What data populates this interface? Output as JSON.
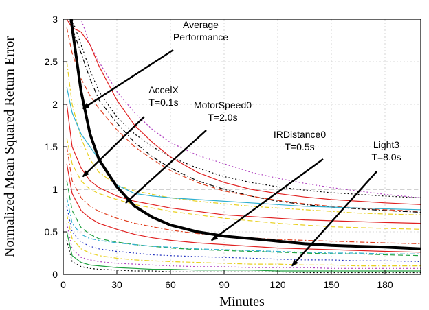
{
  "chart_data": {
    "type": "line",
    "title": "",
    "xlabel": "Minutes",
    "ylabel": "Normalized Mean Squared Return Error",
    "xlim": [
      0,
      200
    ],
    "ylim": [
      0,
      3
    ],
    "x_ticks": [
      0,
      30,
      60,
      90,
      120,
      150,
      180
    ],
    "y_ticks": [
      0,
      0.5,
      1,
      1.5,
      2,
      2.5,
      3
    ],
    "y_tick_labels": [
      "0",
      "0.5",
      "1",
      "1.5",
      "2",
      "2.5",
      "3"
    ],
    "grid": true,
    "reference_line": {
      "y": 1,
      "style": "dashed",
      "color": "#a0a0a0"
    },
    "x": [
      2,
      5,
      10,
      15,
      20,
      30,
      40,
      50,
      60,
      75,
      90,
      105,
      120,
      135,
      150,
      165,
      180,
      200
    ],
    "average_series": {
      "name": "Average Performance",
      "color": "#000000",
      "values": [
        3.4,
        2.9,
        2.15,
        1.65,
        1.35,
        1.03,
        0.8,
        0.67,
        0.58,
        0.5,
        0.45,
        0.42,
        0.39,
        0.36,
        0.34,
        0.33,
        0.32,
        0.3
      ]
    },
    "series": [
      {
        "color": "#b040c0",
        "style": "dotted",
        "values": [
          3.2,
          3.1,
          3.0,
          2.7,
          2.5,
          2.15,
          1.9,
          1.7,
          1.55,
          1.4,
          1.3,
          1.2,
          1.13,
          1.07,
          1.02,
          0.98,
          0.94,
          0.9
        ]
      },
      {
        "color": "#000000",
        "style": "dotted",
        "values": [
          3.1,
          3.0,
          2.7,
          2.4,
          2.15,
          1.85,
          1.65,
          1.5,
          1.38,
          1.25,
          1.15,
          1.08,
          1.03,
          0.99,
          0.96,
          0.94,
          0.92,
          0.9
        ]
      },
      {
        "color": "#000000",
        "style": "dashdot",
        "values": [
          3.1,
          2.9,
          2.6,
          2.3,
          2.05,
          1.78,
          1.55,
          1.38,
          1.25,
          1.1,
          1.0,
          0.92,
          0.86,
          0.82,
          0.79,
          0.77,
          0.75,
          0.73
        ]
      },
      {
        "color": "#e02020",
        "style": "solid",
        "values": [
          3.0,
          2.9,
          2.85,
          2.7,
          2.45,
          2.05,
          1.75,
          1.55,
          1.38,
          1.2,
          1.08,
          1.0,
          0.95,
          0.91,
          0.88,
          0.86,
          0.84,
          0.82
        ]
      },
      {
        "color": "#e04020",
        "style": "dashed",
        "values": [
          2.9,
          2.6,
          2.3,
          2.1,
          1.95,
          1.7,
          1.5,
          1.35,
          1.22,
          1.08,
          0.98,
          0.92,
          0.87,
          0.83,
          0.8,
          0.78,
          0.76,
          0.74
        ]
      },
      {
        "color": "#e8d020",
        "style": "dashdot",
        "values": [
          2.5,
          2.0,
          1.6,
          1.35,
          1.2,
          1.05,
          0.98,
          0.94,
          0.9,
          0.86,
          0.83,
          0.8,
          0.78,
          0.76,
          0.74,
          0.72,
          0.71,
          0.7
        ]
      },
      {
        "color": "#30b0d0",
        "style": "solid",
        "values": [
          2.2,
          1.9,
          1.65,
          1.5,
          1.35,
          1.05,
          0.95,
          0.92,
          0.9,
          0.88,
          0.86,
          0.84,
          0.82,
          0.8,
          0.79,
          0.78,
          0.77,
          0.76
        ]
      },
      {
        "color": "#e02020",
        "style": "solid",
        "values": [
          2.0,
          1.5,
          1.25,
          1.1,
          1.02,
          0.92,
          0.86,
          0.82,
          0.78,
          0.74,
          0.7,
          0.68,
          0.66,
          0.64,
          0.63,
          0.62,
          0.61,
          0.6
        ]
      },
      {
        "color": "#e8d020",
        "style": "dashed",
        "values": [
          1.6,
          1.3,
          1.1,
          1.0,
          0.95,
          0.88,
          0.82,
          0.78,
          0.74,
          0.7,
          0.66,
          0.63,
          0.6,
          0.58,
          0.56,
          0.55,
          0.54,
          0.53
        ]
      },
      {
        "color": "#e04020",
        "style": "dashdot",
        "values": [
          1.5,
          1.1,
          0.9,
          0.8,
          0.74,
          0.66,
          0.6,
          0.56,
          0.52,
          0.48,
          0.45,
          0.43,
          0.41,
          0.4,
          0.39,
          0.38,
          0.37,
          0.36
        ]
      },
      {
        "color": "#e02020",
        "style": "solid",
        "values": [
          1.3,
          0.95,
          0.75,
          0.66,
          0.6,
          0.53,
          0.47,
          0.43,
          0.4,
          0.37,
          0.35,
          0.33,
          0.31,
          0.3,
          0.29,
          0.28,
          0.27,
          0.26
        ]
      },
      {
        "color": "#20a040",
        "style": "dashed",
        "values": [
          1.1,
          0.75,
          0.55,
          0.47,
          0.42,
          0.38,
          0.35,
          0.33,
          0.31,
          0.29,
          0.28,
          0.27,
          0.26,
          0.25,
          0.24,
          0.24,
          0.23,
          0.22
        ]
      },
      {
        "color": "#30b0d0",
        "style": "dashdot",
        "values": [
          0.9,
          0.6,
          0.47,
          0.42,
          0.4,
          0.37,
          0.35,
          0.33,
          0.32,
          0.3,
          0.29,
          0.28,
          0.27,
          0.26,
          0.25,
          0.25,
          0.24,
          0.24
        ]
      },
      {
        "color": "#2030c0",
        "style": "dotted",
        "values": [
          0.8,
          0.5,
          0.38,
          0.33,
          0.3,
          0.27,
          0.25,
          0.23,
          0.22,
          0.21,
          0.2,
          0.19,
          0.18,
          0.17,
          0.17,
          0.16,
          0.16,
          0.15
        ]
      },
      {
        "color": "#e8d020",
        "style": "dashdot",
        "values": [
          0.7,
          0.42,
          0.3,
          0.25,
          0.22,
          0.19,
          0.17,
          0.16,
          0.15,
          0.14,
          0.13,
          0.12,
          0.12,
          0.11,
          0.11,
          0.1,
          0.1,
          0.1
        ]
      },
      {
        "color": "#b040c0",
        "style": "dotted",
        "values": [
          0.6,
          0.3,
          0.2,
          0.17,
          0.15,
          0.13,
          0.12,
          0.11,
          0.1,
          0.09,
          0.09,
          0.08,
          0.08,
          0.08,
          0.07,
          0.07,
          0.07,
          0.07
        ]
      },
      {
        "color": "#20a040",
        "style": "solid",
        "values": [
          0.5,
          0.22,
          0.14,
          0.11,
          0.1,
          0.08,
          0.07,
          0.06,
          0.06,
          0.05,
          0.05,
          0.05,
          0.04,
          0.04,
          0.04,
          0.04,
          0.04,
          0.04
        ]
      },
      {
        "color": "#000000",
        "style": "dotted",
        "values": [
          0.4,
          0.15,
          0.09,
          0.07,
          0.06,
          0.05,
          0.04,
          0.04,
          0.03,
          0.03,
          0.03,
          0.03,
          0.03,
          0.02,
          0.02,
          0.02,
          0.02,
          0.02
        ]
      }
    ],
    "annotations": [
      {
        "text": [
          "Average",
          "Performance"
        ],
        "point_x": 11,
        "point_y": 1.95
      },
      {
        "text": [
          "AccelX",
          "T=0.1s"
        ],
        "point_x": 11,
        "point_y": 1.15
      },
      {
        "text": [
          "MotorSpeed0",
          "T=2.0s"
        ],
        "point_x": 35,
        "point_y": 0.84
      },
      {
        "text": [
          "IRDistance0",
          "T=0.5s"
        ],
        "point_x": 83,
        "point_y": 0.4
      },
      {
        "text": [
          "Light3",
          "T=8.0s"
        ],
        "point_x": 128,
        "point_y": 0.1
      }
    ],
    "colors": {
      "average": "#000000",
      "grid": "#cccccc",
      "reference": "#a0a0a0"
    }
  }
}
